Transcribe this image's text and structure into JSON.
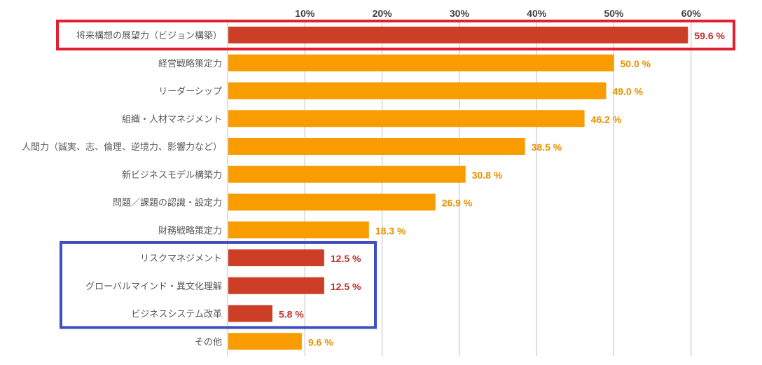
{
  "colors": {
    "bar_default": "#F89C00",
    "bar_highlight": "#CC3F26",
    "label_default": "#E89000",
    "label_highlight": "#C0302A",
    "box_red": "#E0202E",
    "box_blue": "#3F4FC0",
    "grid": "#BFBFBF"
  },
  "chart_data": {
    "type": "bar",
    "orientation": "horizontal",
    "categories": [
      "将来構想の展望力（ビジョン構築）",
      "経営戦略策定力",
      "リーダーシップ",
      "組織・人材マネジメント",
      "人間力（誠実、志、倫理、逆境力、影響力など）",
      "新ビジネスモデル構築力",
      "問題／課題の認識・設定力",
      "財務戦略策定力",
      "リスクマネジメント",
      "グローバルマインド・異文化理解",
      "ビジネスシステム改革",
      "その他"
    ],
    "values": [
      59.6,
      50.0,
      49.0,
      46.2,
      38.5,
      30.8,
      26.9,
      18.3,
      12.5,
      12.5,
      5.8,
      9.6
    ],
    "value_labels": [
      "59.6 %",
      "50.0 %",
      "49.0 %",
      "46.2 %",
      "38.5 %",
      "30.8 %",
      "26.9 %",
      "18.3 %",
      "12.5 %",
      "12.5 %",
      "5.8 %",
      "9.6 %"
    ],
    "highlighted": [
      true,
      false,
      false,
      false,
      false,
      false,
      false,
      false,
      true,
      true,
      true,
      false
    ],
    "xticks": [
      10,
      20,
      30,
      40,
      50,
      60
    ],
    "xtick_labels": [
      "10%",
      "20%",
      "30%",
      "40%",
      "50%",
      "60%"
    ],
    "xlim": [
      0,
      65
    ],
    "xaxis_position": "top",
    "grid": true,
    "legend": "none",
    "highlight_boxes": [
      {
        "color": "red",
        "categories": [
          0
        ]
      },
      {
        "color": "blue",
        "categories": [
          8,
          9,
          10
        ]
      }
    ]
  }
}
